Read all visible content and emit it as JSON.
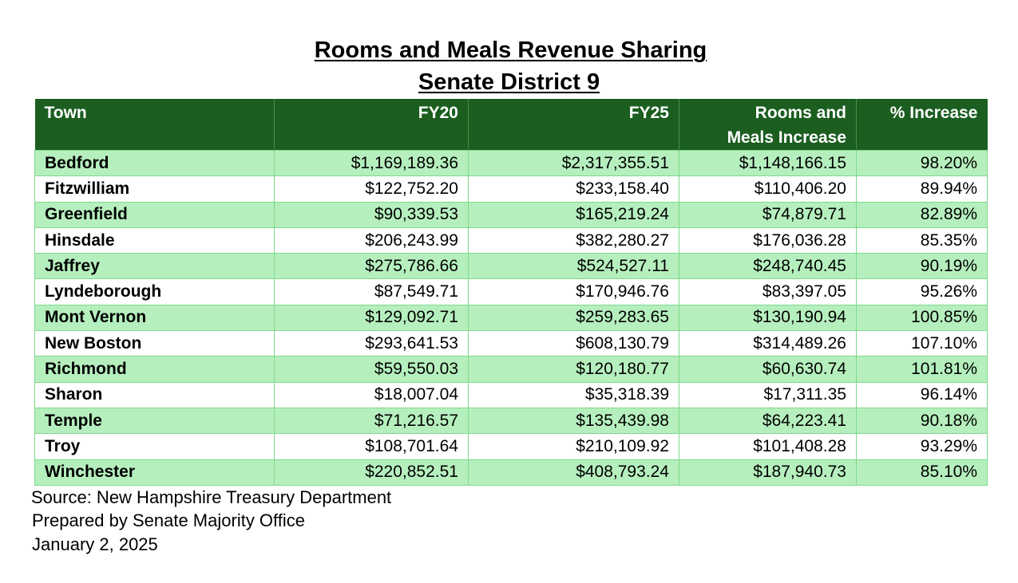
{
  "title": {
    "line1": "Rooms and Meals Revenue Sharing",
    "line2": "Senate District 9"
  },
  "table": {
    "headers": {
      "town": "Town",
      "fy20": "FY20",
      "fy25": "FY25",
      "increase_line1": "Rooms and",
      "increase_line2": "Meals Increase",
      "pct": "% Increase"
    },
    "rows": [
      {
        "town": "Bedford",
        "fy20": "$1,169,189.36",
        "fy25": "$2,317,355.51",
        "increase": "$1,148,166.15",
        "pct": "98.20%"
      },
      {
        "town": "Fitzwilliam",
        "fy20": "$122,752.20",
        "fy25": "$233,158.40",
        "increase": "$110,406.20",
        "pct": "89.94%"
      },
      {
        "town": "Greenfield",
        "fy20": "$90,339.53",
        "fy25": "$165,219.24",
        "increase": "$74,879.71",
        "pct": "82.89%"
      },
      {
        "town": "Hinsdale",
        "fy20": "$206,243.99",
        "fy25": "$382,280.27",
        "increase": "$176,036.28",
        "pct": "85.35%"
      },
      {
        "town": "Jaffrey",
        "fy20": "$275,786.66",
        "fy25": "$524,527.11",
        "increase": "$248,740.45",
        "pct": "90.19%"
      },
      {
        "town": "Lyndeborough",
        "fy20": "$87,549.71",
        "fy25": "$170,946.76",
        "increase": "$83,397.05",
        "pct": "95.26%"
      },
      {
        "town": "Mont Vernon",
        "fy20": "$129,092.71",
        "fy25": "$259,283.65",
        "increase": "$130,190.94",
        "pct": "100.85%"
      },
      {
        "town": "New Boston",
        "fy20": "$293,641.53",
        "fy25": "$608,130.79",
        "increase": "$314,489.26",
        "pct": "107.10%"
      },
      {
        "town": "Richmond",
        "fy20": "$59,550.03",
        "fy25": "$120,180.77",
        "increase": "$60,630.74",
        "pct": "101.81%"
      },
      {
        "town": "Sharon",
        "fy20": "$18,007.04",
        "fy25": "$35,318.39",
        "increase": "$17,311.35",
        "pct": "96.14%"
      },
      {
        "town": "Temple",
        "fy20": "$71,216.57",
        "fy25": "$135,439.98",
        "increase": "$64,223.41",
        "pct": "90.18%"
      },
      {
        "town": "Troy",
        "fy20": "$108,701.64",
        "fy25": "$210,109.92",
        "increase": "$101,408.28",
        "pct": "93.29%"
      },
      {
        "town": "Winchester",
        "fy20": "$220,852.51",
        "fy25": "$408,793.24",
        "increase": "$187,940.73",
        "pct": "85.10%"
      }
    ]
  },
  "footer": {
    "source": "Source: New Hampshire Treasury Department",
    "prepared_by": "Prepared by Senate Majority Office",
    "date": "January 2, 2025"
  },
  "colors": {
    "header_background": "#1b5e20",
    "shaded_row": "#b6efbe",
    "grid_line": "#7fd98a"
  }
}
